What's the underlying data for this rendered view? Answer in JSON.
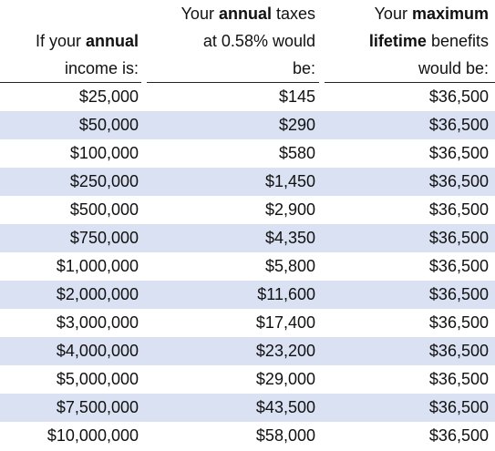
{
  "table": {
    "header": [
      [
        [
          {
            "text": "If your "
          },
          {
            "text": "annual",
            "bold": true
          }
        ],
        [
          {
            "text": "income is:"
          }
        ]
      ],
      [
        [
          {
            "text": "Your "
          },
          {
            "text": "annual",
            "bold": true
          },
          {
            "text": " taxes"
          }
        ],
        [
          {
            "text": "at 0.58% would"
          }
        ],
        [
          {
            "text": "be:"
          }
        ]
      ],
      [
        [
          {
            "text": "Your "
          },
          {
            "text": "maximum",
            "bold": true
          }
        ],
        [
          {
            "text": "lifetime",
            "bold": true
          },
          {
            "text": " benefits"
          }
        ],
        [
          {
            "text": "would be:"
          }
        ]
      ]
    ],
    "rows": [
      [
        "$25,000",
        "$145",
        "$36,500"
      ],
      [
        "$50,000",
        "$290",
        "$36,500"
      ],
      [
        "$100,000",
        "$580",
        "$36,500"
      ],
      [
        "$250,000",
        "$1,450",
        "$36,500"
      ],
      [
        "$500,000",
        "$2,900",
        "$36,500"
      ],
      [
        "$750,000",
        "$4,350",
        "$36,500"
      ],
      [
        "$1,000,000",
        "$5,800",
        "$36,500"
      ],
      [
        "$2,000,000",
        "$11,600",
        "$36,500"
      ],
      [
        "$3,000,000",
        "$17,400",
        "$36,500"
      ],
      [
        "$4,000,000",
        "$23,200",
        "$36,500"
      ],
      [
        "$5,000,000",
        "$29,000",
        "$36,500"
      ],
      [
        "$7,500,000",
        "$43,500",
        "$36,500"
      ],
      [
        "$10,000,000",
        "$58,000",
        "$36,500"
      ]
    ]
  }
}
